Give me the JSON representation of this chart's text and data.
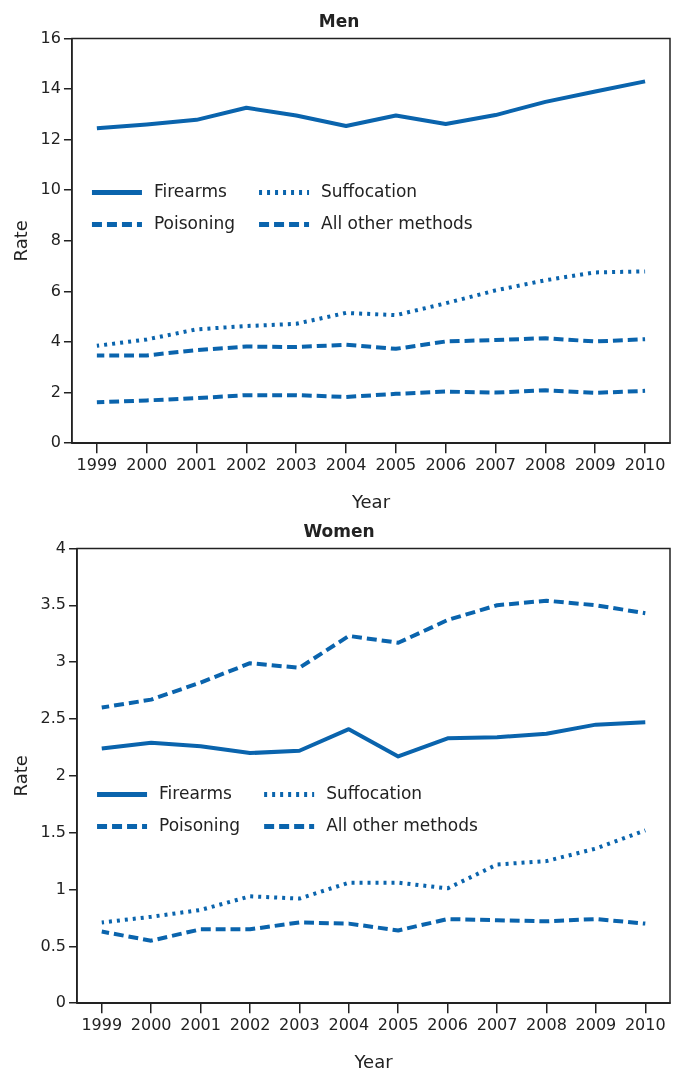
{
  "chart_data": [
    {
      "type": "line",
      "title": "Men",
      "xlabel": "Year",
      "ylabel": "Rate",
      "categories": [
        "1999",
        "2000",
        "2001",
        "2002",
        "2003",
        "2004",
        "2005",
        "2006",
        "2007",
        "2008",
        "2009",
        "2010"
      ],
      "ylim": [
        0,
        16
      ],
      "yticks": [
        0,
        2,
        4,
        6,
        8,
        10,
        12,
        14,
        16
      ],
      "grid": false,
      "legend": "left",
      "marker": "none",
      "series": [
        {
          "name": "Firearms",
          "color": "#0a64ad",
          "line_style": "solid",
          "values": [
            12.45,
            12.6,
            12.78,
            13.26,
            12.95,
            12.54,
            12.95,
            12.62,
            12.97,
            13.49,
            13.9,
            14.3
          ]
        },
        {
          "name": "Poisoning",
          "color": "#0a64ad",
          "line_style": "dashed",
          "values": [
            3.47,
            3.47,
            3.68,
            3.82,
            3.8,
            3.89,
            3.73,
            4.02,
            4.08,
            4.15,
            4.02,
            4.11
          ]
        },
        {
          "name": "Suffocation",
          "color": "#0a64ad",
          "line_style": "dotted",
          "values": [
            3.85,
            4.1,
            4.5,
            4.63,
            4.72,
            5.15,
            5.06,
            5.53,
            6.04,
            6.44,
            6.75,
            6.79
          ]
        },
        {
          "name": "All other methods",
          "color": "#0a64ad",
          "line_style": "dashed",
          "values": [
            1.62,
            1.69,
            1.78,
            1.9,
            1.9,
            1.83,
            1.95,
            2.04,
            2.0,
            2.09,
            1.99,
            2.07
          ]
        }
      ]
    },
    {
      "type": "line",
      "title": "Women",
      "xlabel": "Year",
      "ylabel": "Rate",
      "categories": [
        "1999",
        "2000",
        "2001",
        "2002",
        "2003",
        "2004",
        "2005",
        "2006",
        "2007",
        "2008",
        "2009",
        "2010"
      ],
      "ylim": [
        0,
        4
      ],
      "yticks": [
        0,
        0.5,
        1,
        1.5,
        2,
        2.5,
        3,
        3.5,
        4
      ],
      "grid": false,
      "legend": "left",
      "marker": "none",
      "series": [
        {
          "name": "Firearms",
          "color": "#0a64ad",
          "line_style": "solid",
          "values": [
            2.24,
            2.29,
            2.26,
            2.2,
            2.22,
            2.41,
            2.17,
            2.33,
            2.34,
            2.37,
            2.45,
            2.47
          ]
        },
        {
          "name": "Poisoning",
          "color": "#0a64ad",
          "line_style": "dashed",
          "values": [
            2.6,
            2.67,
            2.82,
            2.99,
            2.95,
            3.23,
            3.17,
            3.37,
            3.5,
            3.54,
            3.5,
            3.43
          ]
        },
        {
          "name": "Suffocation",
          "color": "#0a64ad",
          "line_style": "dotted",
          "values": [
            0.71,
            0.76,
            0.82,
            0.94,
            0.92,
            1.06,
            1.06,
            1.01,
            1.22,
            1.25,
            1.36,
            1.52
          ]
        },
        {
          "name": "All other methods",
          "color": "#0a64ad",
          "line_style": "dashed",
          "values": [
            0.63,
            0.55,
            0.65,
            0.65,
            0.71,
            0.7,
            0.64,
            0.74,
            0.73,
            0.72,
            0.74,
            0.7
          ]
        }
      ]
    }
  ]
}
